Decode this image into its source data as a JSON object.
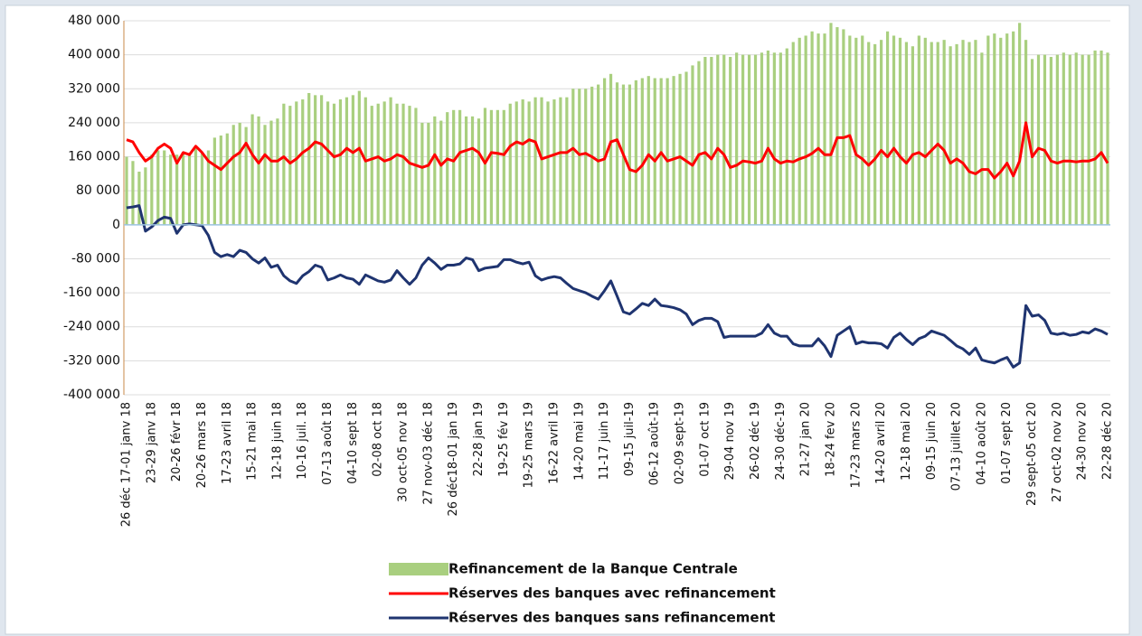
{
  "chart_data": {
    "type": "bar-line",
    "categories": [
      "26 déc 17-01 janv 18",
      null,
      null,
      null,
      "23-29 janv 18",
      null,
      null,
      null,
      "20-26 févr 18",
      null,
      null,
      null,
      "20-26 mars 18",
      null,
      null,
      null,
      "17-23 avril 18",
      null,
      null,
      null,
      "15-21 mai 18",
      null,
      null,
      null,
      "12-18 juin 18",
      null,
      null,
      null,
      "10-16 juil. 18",
      null,
      null,
      null,
      "07-13 août 18",
      null,
      null,
      null,
      "04-10 sept 18",
      null,
      null,
      null,
      "02-08 oct 18",
      null,
      null,
      null,
      "30 oct-05 nov 18",
      null,
      null,
      null,
      "27 nov-03 déc 18",
      null,
      null,
      null,
      "26 déc18-01 jan 19",
      null,
      null,
      null,
      "22-28 jan 19",
      null,
      null,
      null,
      "19-25 fév 19",
      null,
      null,
      null,
      "19-25 mars 19",
      null,
      null,
      null,
      "16-22 avril 19",
      null,
      null,
      null,
      "14-20 mai 19",
      null,
      null,
      null,
      "11-17 juin 19",
      null,
      null,
      null,
      "09-15 juil-19",
      null,
      null,
      null,
      "06-12 août-19",
      null,
      null,
      null,
      "02-09 sept-19",
      null,
      null,
      null,
      "01-07 oct 19",
      null,
      null,
      null,
      "29-04 nov 19",
      null,
      null,
      null,
      "26-02 déc 19",
      null,
      null,
      null,
      "24-30 déc-19",
      null,
      null,
      null,
      "21-27 jan 20",
      null,
      null,
      null,
      "18-24 fev 20",
      null,
      null,
      null,
      "17-23 mars 20",
      null,
      null,
      null,
      "14-20 avril 20",
      null,
      null,
      null,
      "12-18 mai 20",
      null,
      null,
      null,
      "09-15 juin 20",
      null,
      null,
      null,
      "07-13 juillet 20",
      null,
      null,
      null,
      "04-10 août 20",
      null,
      null,
      null,
      "01-07 sept 20",
      null,
      null,
      null,
      "29 sept-05 oct 20",
      null,
      null,
      null,
      "27 oct-02 nov 20",
      null,
      null,
      null,
      "24-30 nov 20",
      null,
      null,
      null,
      "22-28 déc 20"
    ],
    "series": [
      {
        "name": "Refinancement de la Banque Centrale",
        "kind": "bar",
        "color": "#a9cf7f",
        "values": [
          160000,
          150000,
          125000,
          135000,
          165000,
          175000,
          175000,
          165000,
          165000,
          170000,
          165000,
          185000,
          170000,
          175000,
          205000,
          210000,
          215000,
          235000,
          240000,
          230000,
          260000,
          255000,
          235000,
          245000,
          250000,
          285000,
          280000,
          290000,
          295000,
          310000,
          305000,
          305000,
          290000,
          285000,
          295000,
          300000,
          305000,
          315000,
          300000,
          280000,
          285000,
          290000,
          300000,
          285000,
          285000,
          280000,
          275000,
          240000,
          240000,
          255000,
          245000,
          265000,
          270000,
          270000,
          255000,
          255000,
          250000,
          275000,
          270000,
          270000,
          270000,
          285000,
          290000,
          295000,
          290000,
          300000,
          300000,
          290000,
          295000,
          300000,
          300000,
          320000,
          320000,
          320000,
          325000,
          330000,
          345000,
          355000,
          335000,
          330000,
          330000,
          340000,
          345000,
          350000,
          345000,
          345000,
          345000,
          350000,
          355000,
          360000,
          375000,
          385000,
          395000,
          395000,
          400000,
          400000,
          395000,
          405000,
          400000,
          400000,
          400000,
          405000,
          410000,
          405000,
          405000,
          415000,
          430000,
          440000,
          445000,
          455000,
          450000,
          450000,
          475000,
          465000,
          460000,
          445000,
          440000,
          445000,
          430000,
          425000,
          435000,
          455000,
          445000,
          440000,
          430000,
          420000,
          445000,
          440000,
          430000,
          430000,
          435000,
          420000,
          425000,
          435000,
          430000,
          435000,
          405000,
          445000,
          450000,
          440000,
          450000,
          455000,
          475000,
          435000,
          390000,
          400000,
          400000,
          395000,
          400000,
          405000,
          400000,
          405000,
          400000,
          400000,
          410000,
          410000,
          405000
        ]
      },
      {
        "name": "Réserves des banques avec refinancement",
        "kind": "line",
        "color": "#ff0000",
        "values": [
          200000,
          195000,
          170000,
          150000,
          160000,
          180000,
          190000,
          180000,
          145000,
          170000,
          165000,
          185000,
          170000,
          150000,
          140000,
          130000,
          145000,
          160000,
          170000,
          192000,
          165000,
          145000,
          165000,
          150000,
          150000,
          160000,
          145000,
          155000,
          170000,
          180000,
          195000,
          190000,
          175000,
          160000,
          165000,
          180000,
          170000,
          180000,
          150000,
          155000,
          160000,
          150000,
          155000,
          165000,
          160000,
          145000,
          140000,
          135000,
          140000,
          165000,
          140000,
          155000,
          150000,
          170000,
          175000,
          180000,
          170000,
          145000,
          170000,
          168000,
          165000,
          185000,
          195000,
          190000,
          200000,
          195000,
          155000,
          160000,
          165000,
          170000,
          170000,
          180000,
          165000,
          168000,
          160000,
          150000,
          155000,
          195000,
          200000,
          165000,
          130000,
          125000,
          140000,
          165000,
          150000,
          170000,
          150000,
          155000,
          160000,
          150000,
          140000,
          165000,
          170000,
          155000,
          180000,
          165000,
          135000,
          140000,
          150000,
          148000,
          145000,
          150000,
          180000,
          155000,
          145000,
          150000,
          148000,
          155000,
          160000,
          168000,
          180000,
          165000,
          165000,
          205000,
          205000,
          210000,
          165000,
          155000,
          140000,
          155000,
          175000,
          160000,
          180000,
          160000,
          145000,
          165000,
          170000,
          160000,
          175000,
          190000,
          175000,
          145000,
          155000,
          145000,
          125000,
          120000,
          130000,
          130000,
          110000,
          125000,
          145000,
          115000,
          150000,
          240000,
          160000,
          180000,
          175000,
          150000,
          145000,
          150000,
          150000,
          148000,
          150000,
          150000,
          155000,
          170000,
          145000
        ]
      },
      {
        "name": "Réserves des banques sans refinancement",
        "kind": "line",
        "color": "#1f3470",
        "values": [
          40000,
          42000,
          45000,
          -15000,
          -5000,
          10000,
          18000,
          15000,
          -20000,
          0,
          2000,
          0,
          -2000,
          -25000,
          -65000,
          -75000,
          -70000,
          -75000,
          -60000,
          -65000,
          -80000,
          -90000,
          -78000,
          -100000,
          -95000,
          -120000,
          -132000,
          -138000,
          -120000,
          -110000,
          -95000,
          -100000,
          -130000,
          -125000,
          -118000,
          -125000,
          -128000,
          -140000,
          -118000,
          -125000,
          -132000,
          -135000,
          -130000,
          -108000,
          -125000,
          -140000,
          -125000,
          -95000,
          -78000,
          -90000,
          -105000,
          -95000,
          -95000,
          -92000,
          -78000,
          -82000,
          -108000,
          -102000,
          -100000,
          -98000,
          -82000,
          -82000,
          -88000,
          -92000,
          -88000,
          -120000,
          -130000,
          -125000,
          -122000,
          -125000,
          -138000,
          -150000,
          -155000,
          -160000,
          -168000,
          -175000,
          -155000,
          -132000,
          -168000,
          -205000,
          -210000,
          -198000,
          -185000,
          -190000,
          -175000,
          -190000,
          -192000,
          -195000,
          -200000,
          -210000,
          -235000,
          -225000,
          -220000,
          -220000,
          -228000,
          -265000,
          -262000,
          -262000,
          -262000,
          -262000,
          -262000,
          -255000,
          -235000,
          -255000,
          -262000,
          -262000,
          -280000,
          -285000,
          -285000,
          -285000,
          -268000,
          -285000,
          -310000,
          -260000,
          -250000,
          -240000,
          -280000,
          -275000,
          -278000,
          -278000,
          -280000,
          -290000,
          -265000,
          -255000,
          -270000,
          -282000,
          -268000,
          -262000,
          -250000,
          -255000,
          -260000,
          -272000,
          -285000,
          -292000,
          -305000,
          -290000,
          -318000,
          -322000,
          -325000,
          -318000,
          -312000,
          -335000,
          -325000,
          -190000,
          -215000,
          -212000,
          -225000,
          -255000,
          -258000,
          -255000,
          -260000,
          -258000,
          -252000,
          -255000,
          -245000,
          -250000,
          -258000
        ]
      }
    ],
    "ylim": [
      -400000,
      480000
    ],
    "yticks": [
      {
        "value": -400000,
        "label": "-400 000"
      },
      {
        "value": -320000,
        "label": "-320 000"
      },
      {
        "value": -240000,
        "label": "-240 000"
      },
      {
        "value": -160000,
        "label": "-160 000"
      },
      {
        "value": -80000,
        "label": "-80 000"
      },
      0,
      {
        "value": 80000,
        "label": "80 000"
      },
      {
        "value": 160000,
        "label": "160 000"
      },
      {
        "value": 240000,
        "label": "240 000"
      },
      {
        "value": 320000,
        "label": "320 000"
      },
      {
        "value": 400000,
        "label": "400 000"
      },
      {
        "value": 480000,
        "label": "480 000"
      }
    ],
    "grid": true
  }
}
